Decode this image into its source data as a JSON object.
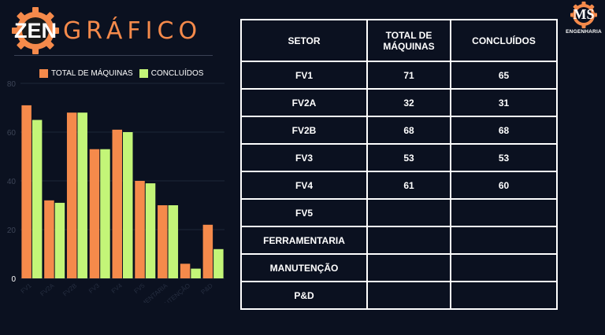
{
  "brand": {
    "zen": "ZEN",
    "grafico": "GRÁFICO"
  },
  "company": {
    "logo_text": "MS",
    "name": "ENGENHARIA"
  },
  "legend": {
    "total": "TOTAL DE MÁQUINAS",
    "done": "CONCLUÍDOS"
  },
  "colors": {
    "total": "#f58a4b",
    "done": "#c3f578",
    "background": "#0b1120",
    "brand_accent": "#f58a4b"
  },
  "chart_data": {
    "type": "bar",
    "categories": [
      "FV1",
      "FV2A",
      "FV2B",
      "FV3",
      "FV4",
      "FV5",
      "FERRAMENTARIA",
      "MANUTENÇÃO",
      "P&D"
    ],
    "series": [
      {
        "name": "TOTAL DE MÁQUINAS",
        "values": [
          71,
          32,
          68,
          53,
          61,
          40,
          30,
          6,
          22
        ]
      },
      {
        "name": "CONCLUÍDOS",
        "values": [
          65,
          31,
          68,
          53,
          60,
          39,
          30,
          4,
          12
        ]
      }
    ],
    "ylim": [
      0,
      80
    ],
    "yticks": [
      "0",
      "20",
      "40",
      "60",
      "80"
    ],
    "grid": true,
    "legend_position": "top"
  },
  "table": {
    "headers": {
      "setor": "SETOR",
      "total": "TOTAL DE MÁQUINAS",
      "concluidos": "CONCLUÍDOS"
    },
    "rows": [
      {
        "setor": "FV1",
        "total": "71",
        "concluidos": "65"
      },
      {
        "setor": "FV2A",
        "total": "32",
        "concluidos": "31"
      },
      {
        "setor": "FV2B",
        "total": "68",
        "concluidos": "68"
      },
      {
        "setor": "FV3",
        "total": "53",
        "concluidos": "53"
      },
      {
        "setor": "FV4",
        "total": "61",
        "concluidos": "60"
      },
      {
        "setor": "FV5",
        "total": "",
        "concluidos": ""
      },
      {
        "setor": "FERRAMENTARIA",
        "total": "",
        "concluidos": ""
      },
      {
        "setor": "MANUTENÇÃO",
        "total": "",
        "concluidos": ""
      },
      {
        "setor": "P&D",
        "total": "",
        "concluidos": ""
      }
    ]
  }
}
